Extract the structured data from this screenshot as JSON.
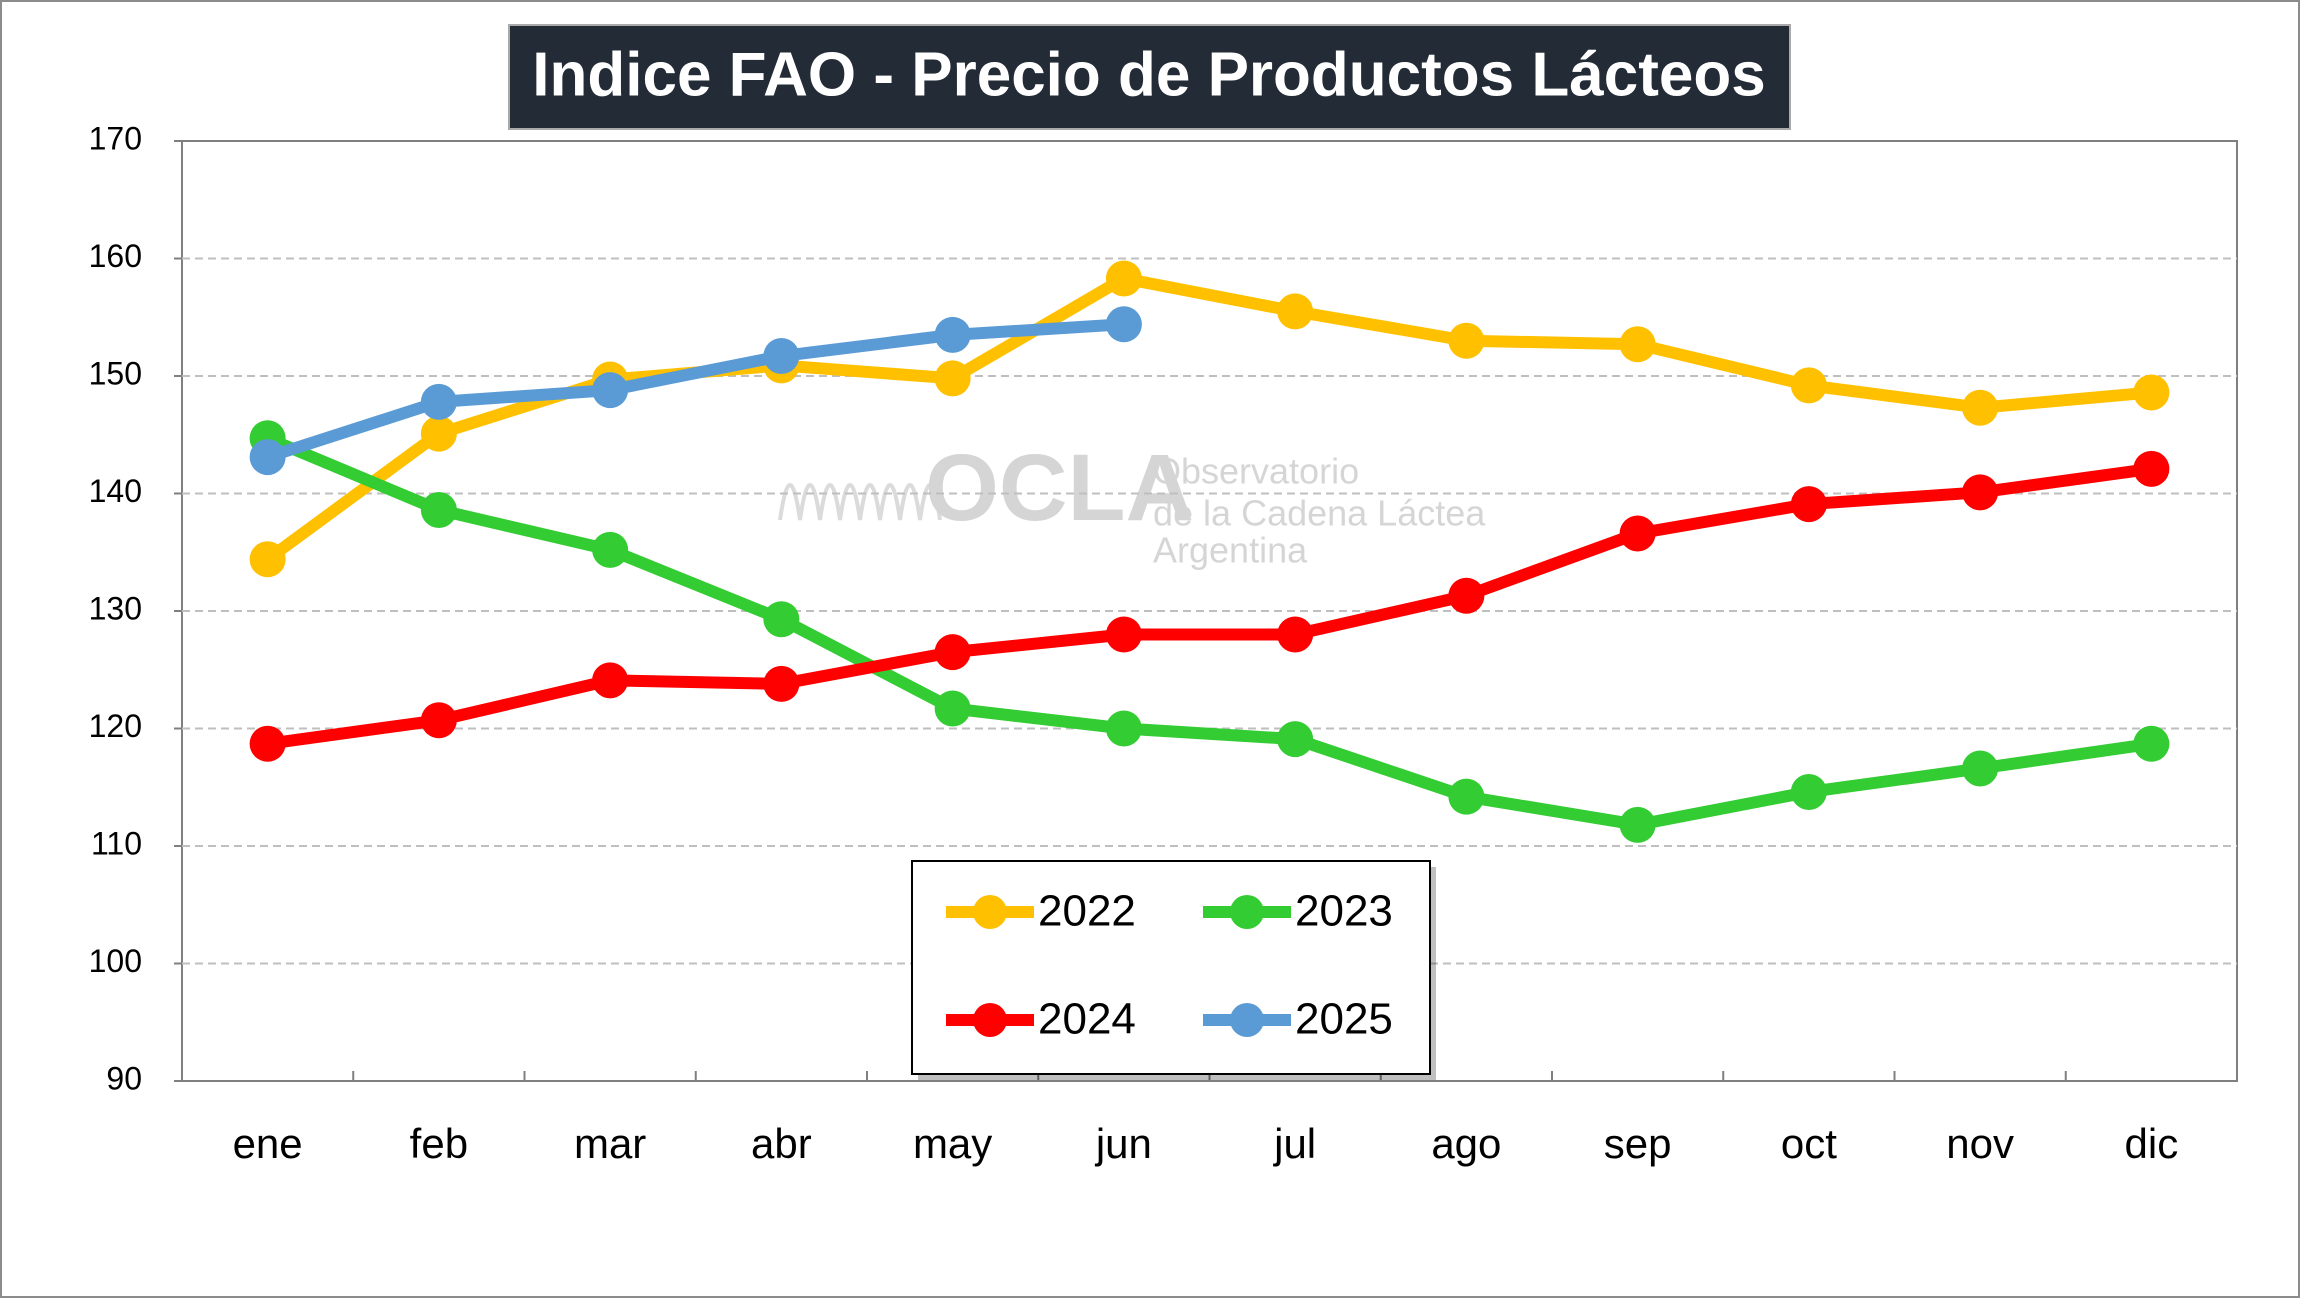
{
  "chart_data": {
    "type": "line",
    "title": "Indice FAO - Precio de Productos Lácteos",
    "watermark": [
      "OCLA",
      "Observatorio",
      "de la Cadena Láctea",
      "Argentina"
    ],
    "categories": [
      "ene",
      "feb",
      "mar",
      "abr",
      "may",
      "jun",
      "jul",
      "ago",
      "sep",
      "oct",
      "nov",
      "dic"
    ],
    "series": [
      {
        "name": "2022",
        "color": "#ffc000",
        "values": [
          134.4,
          145.1,
          149.7,
          150.9,
          149.8,
          158.3,
          155.5,
          153,
          152.7,
          149.2,
          147.3,
          148.6
        ]
      },
      {
        "name": "2023",
        "color": "#33cc33",
        "values": [
          144.7,
          138.6,
          135.2,
          129.3,
          121.7,
          120,
          119.1,
          114.2,
          111.8,
          114.6,
          116.6,
          118.7
        ]
      },
      {
        "name": "2024",
        "color": "#ff0000",
        "values": [
          118.7,
          120.7,
          124.1,
          123.8,
          126.5,
          128,
          128,
          131.3,
          136.6,
          139.1,
          140.1,
          142.1
        ]
      },
      {
        "name": "2025",
        "color": "#5b9bd5",
        "values": [
          143.1,
          147.8,
          148.8,
          151.7,
          153.5,
          154.4,
          null,
          null,
          null,
          null,
          null,
          null
        ]
      }
    ],
    "ylim": [
      90,
      170
    ],
    "yticks": [
      90,
      100,
      110,
      120,
      130,
      140,
      150,
      160,
      170
    ],
    "grid": true
  }
}
